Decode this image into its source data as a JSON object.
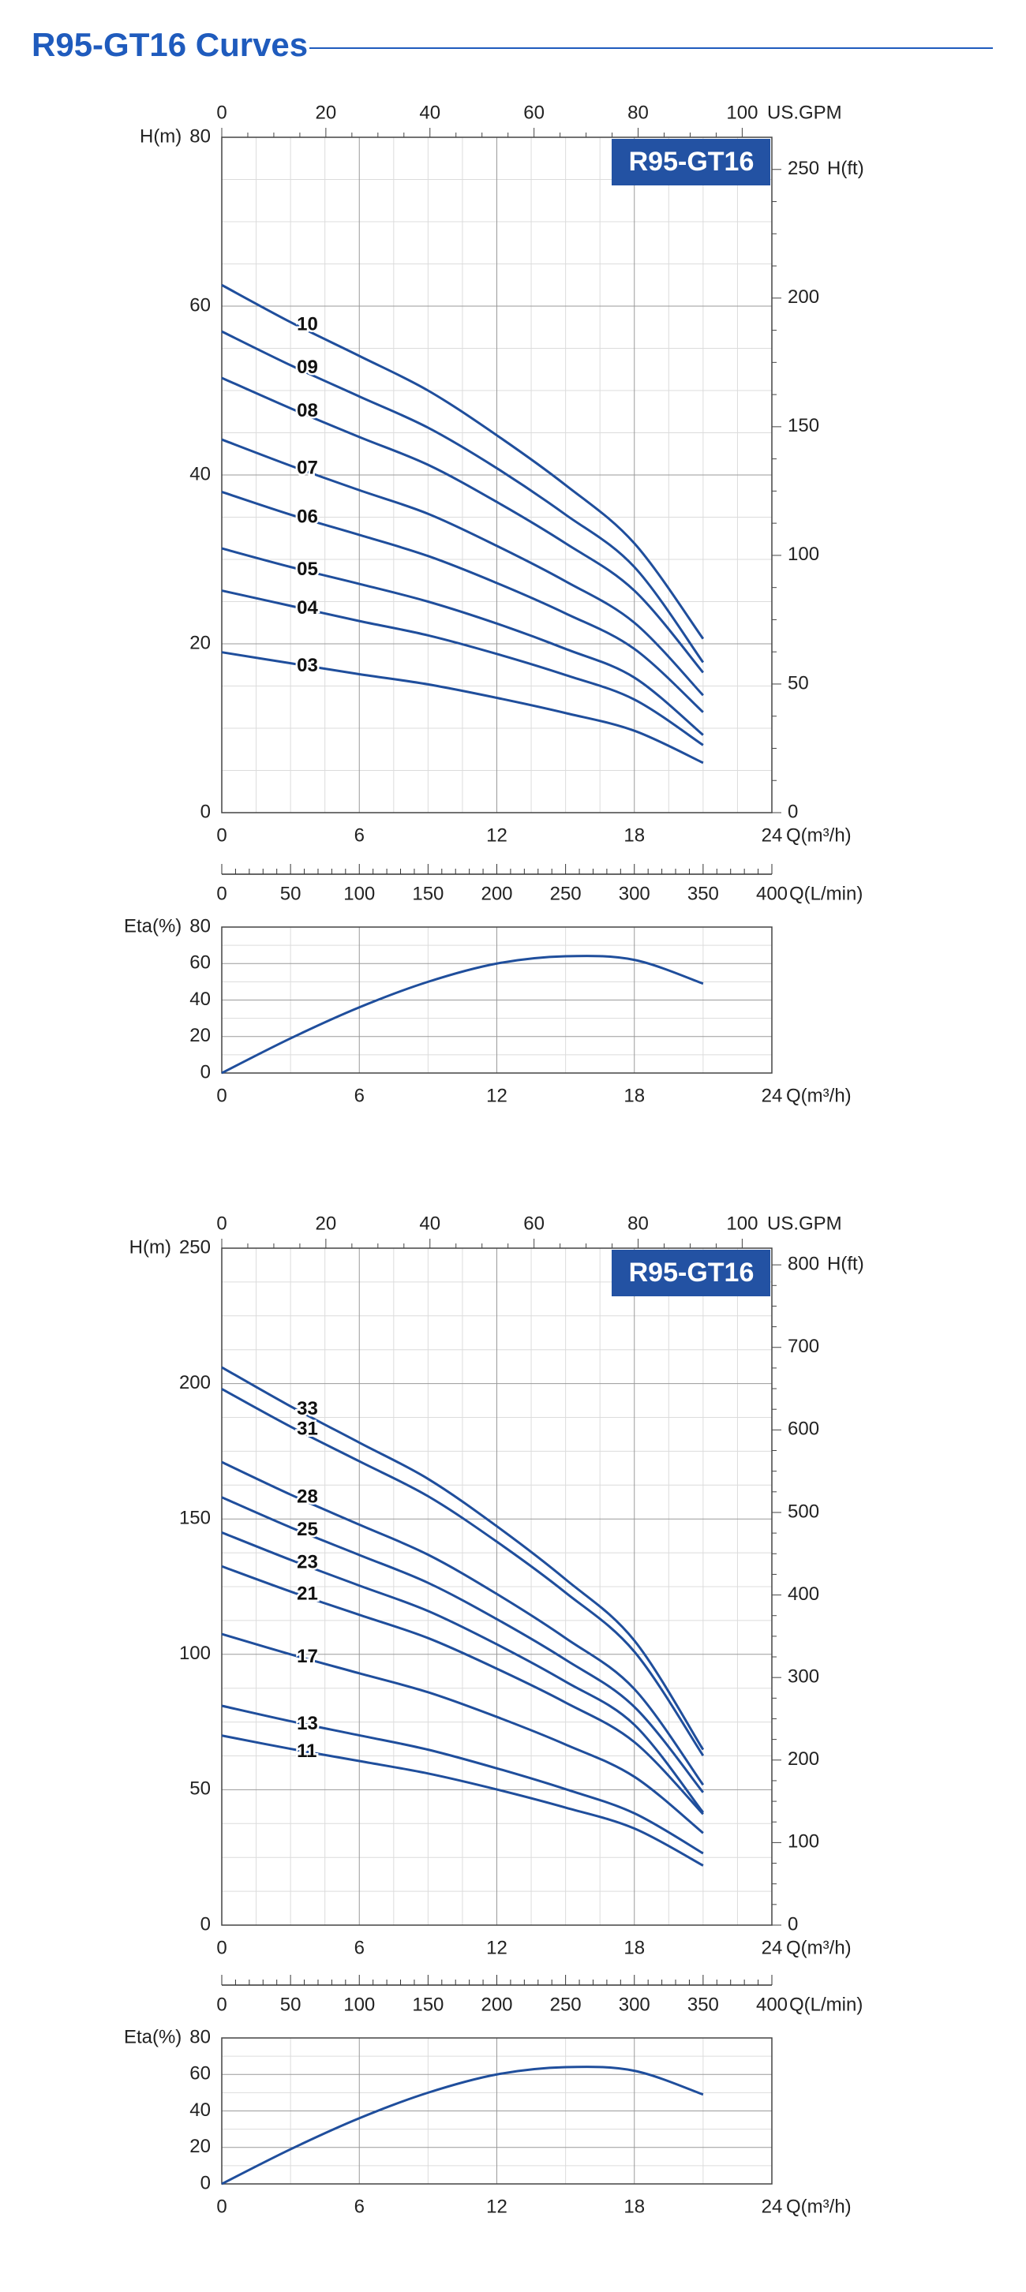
{
  "title": "R95-GT16 Curves",
  "chart_data": [
    {
      "type": "line",
      "title": "R95-GT16",
      "x_label": "Q(m³/h)",
      "y_label": "H(m)",
      "x2_label": "US.GPM",
      "y2_label": "H(ft)",
      "x": [
        0,
        3,
        6,
        9,
        12,
        15,
        18,
        21
      ],
      "xlim": [
        0,
        24
      ],
      "xticks": [
        0,
        6,
        12,
        18,
        24
      ],
      "ylim": [
        0,
        80
      ],
      "yticks": [
        0,
        20,
        40,
        60,
        80
      ],
      "x2lim": [
        0,
        105.7
      ],
      "x2ticks": [
        0,
        20,
        40,
        60,
        80,
        100
      ],
      "y2lim": [
        0,
        262.5
      ],
      "y2ticks": [
        0,
        50,
        100,
        150,
        200,
        250
      ],
      "grid": true,
      "minor": 4,
      "color": "#1f4e9c",
      "series": [
        {
          "name": "10",
          "values": [
            62.5,
            58.1,
            54.1,
            50,
            44.7,
            38.8,
            31.9,
            20.6
          ]
        },
        {
          "name": "09",
          "values": [
            57,
            53,
            49.3,
            45.6,
            40.8,
            35.3,
            29.1,
            17.8
          ]
        },
        {
          "name": "08",
          "values": [
            51.5,
            47.9,
            44.5,
            41.2,
            36.8,
            31.9,
            26.3,
            16.6
          ]
        },
        {
          "name": "07",
          "values": [
            44.2,
            41.1,
            38.2,
            35.4,
            31.6,
            27.4,
            22.5,
            13.9
          ]
        },
        {
          "name": "06",
          "values": [
            38,
            35.3,
            32.9,
            30.4,
            27.2,
            23.6,
            19.4,
            11.9
          ]
        },
        {
          "name": "05",
          "values": [
            31.3,
            29.1,
            27.1,
            25,
            22.4,
            19.4,
            16,
            9.2
          ]
        },
        {
          "name": "04",
          "values": [
            26.3,
            24.5,
            22.7,
            21,
            18.8,
            16.3,
            13.4,
            8
          ]
        },
        {
          "name": "03",
          "values": [
            19,
            17.7,
            16.4,
            15.2,
            13.6,
            11.8,
            9.7,
            5.9
          ]
        }
      ]
    },
    {
      "type": "axis",
      "x_label": "Q(L/min)",
      "xlim": [
        0,
        400
      ],
      "xticks": [
        0,
        50,
        100,
        150,
        200,
        250,
        300,
        350,
        400
      ],
      "minor": 5
    },
    {
      "type": "line",
      "x_label": "Q(m³/h)",
      "y_label": "Eta(%)",
      "x": [
        0,
        3,
        6,
        9,
        12,
        15,
        18,
        21
      ],
      "xlim": [
        0,
        24
      ],
      "xticks": [
        0,
        6,
        12,
        18,
        24
      ],
      "ylim": [
        0,
        80
      ],
      "yticks": [
        0,
        20,
        40,
        60,
        80
      ],
      "grid": true,
      "minor": 2,
      "color": "#1f4e9c",
      "values": [
        0,
        19,
        36,
        50,
        60,
        64,
        62,
        49
      ]
    },
    {
      "type": "line",
      "title": "R95-GT16",
      "x_label": "Q(m³/h)",
      "y_label": "H(m)",
      "x2_label": "US.GPM",
      "y2_label": "H(ft)",
      "x": [
        0,
        3,
        6,
        9,
        12,
        15,
        18,
        21
      ],
      "xlim": [
        0,
        24
      ],
      "xticks": [
        0,
        6,
        12,
        18,
        24
      ],
      "ylim": [
        0,
        250
      ],
      "yticks": [
        0,
        50,
        100,
        150,
        200,
        250
      ],
      "x2lim": [
        0,
        105.7
      ],
      "x2ticks": [
        0,
        20,
        40,
        60,
        80,
        100
      ],
      "y2lim": [
        0,
        820.2
      ],
      "y2ticks": [
        0,
        100,
        200,
        300,
        400,
        500,
        600,
        700,
        800
      ],
      "grid": true,
      "minor": 4,
      "color": "#1f4e9c",
      "series": [
        {
          "name": "33",
          "values": [
            206,
            191.6,
            178.2,
            164.8,
            147.3,
            127.7,
            105.1,
            64.8
          ]
        },
        {
          "name": "31",
          "values": [
            198,
            184.1,
            171.3,
            158.4,
            141.6,
            122.8,
            101,
            62.6
          ]
        },
        {
          "name": "28",
          "values": [
            171,
            159,
            147.9,
            136.8,
            122.3,
            106,
            87.2,
            51.8
          ]
        },
        {
          "name": "25",
          "values": [
            158,
            146.9,
            136.7,
            126.4,
            113,
            98,
            80.6,
            49
          ]
        },
        {
          "name": "23",
          "values": [
            145,
            134.9,
            125.4,
            116,
            103.7,
            89.9,
            74,
            41.6
          ]
        },
        {
          "name": "21",
          "values": [
            132.5,
            123.2,
            114.6,
            106,
            94.7,
            82.2,
            67.6,
            41
          ]
        },
        {
          "name": "17",
          "values": [
            107.5,
            100,
            93,
            86,
            76.9,
            66.7,
            54.8,
            34
          ]
        },
        {
          "name": "13",
          "values": [
            81,
            75.3,
            70.1,
            64.8,
            57.9,
            50.2,
            41.3,
            26.5
          ]
        },
        {
          "name": "11",
          "values": [
            70,
            65.1,
            60.6,
            56,
            50.1,
            43.4,
            35.7,
            22
          ]
        }
      ]
    },
    {
      "type": "axis",
      "x_label": "Q(L/min)",
      "xlim": [
        0,
        400
      ],
      "xticks": [
        0,
        50,
        100,
        150,
        200,
        250,
        300,
        350,
        400
      ],
      "minor": 5
    },
    {
      "type": "line",
      "x_label": "Q(m³/h)",
      "y_label": "Eta(%)",
      "x": [
        0,
        3,
        6,
        9,
        12,
        15,
        18,
        21
      ],
      "xlim": [
        0,
        24
      ],
      "xticks": [
        0,
        6,
        12,
        18,
        24
      ],
      "ylim": [
        0,
        80
      ],
      "yticks": [
        0,
        20,
        40,
        60,
        80
      ],
      "grid": true,
      "minor": 2,
      "color": "#1f4e9c",
      "values": [
        0,
        19,
        36,
        50,
        60,
        64,
        62,
        49
      ]
    }
  ]
}
